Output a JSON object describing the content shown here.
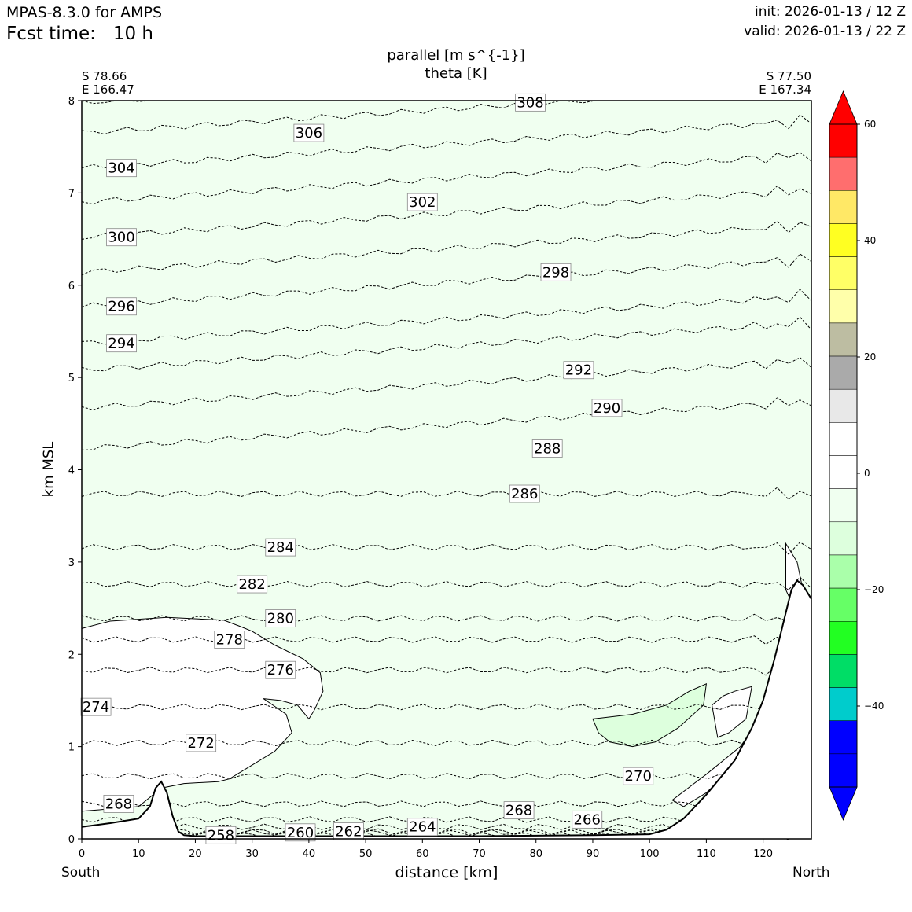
{
  "header": {
    "model": "MPAS-8.3.0 for AMPS",
    "fcst_label": "Fcst time:",
    "fcst_value": "10 h",
    "init": "init: 2026-01-13 / 12 Z",
    "valid": "valid: 2026-01-13 / 22 Z"
  },
  "corners": {
    "left_lat": "S 78.66",
    "left_lon": "E 166.47",
    "right_lat": "S 77.50",
    "right_lon": "E 167.34",
    "south": "South",
    "north": "North"
  },
  "chart_data": {
    "type": "cross-section contour",
    "title": "parallel [m s^{-1}]",
    "subtitle": "theta [K]",
    "xlabel": "distance [km]",
    "ylabel": "km MSL",
    "xlim": [
      0,
      128.5
    ],
    "ylim": [
      0,
      8
    ],
    "xticks": [
      0,
      10,
      20,
      30,
      40,
      50,
      60,
      70,
      80,
      90,
      100,
      110,
      120
    ],
    "yticks": [
      0,
      1,
      2,
      3,
      4,
      5,
      6,
      7,
      8
    ],
    "shading": "parallel wind mostly between -10 and 0 m/s (pale green); small -10 to -5 patch near 90-110 km at 1.3 km",
    "theta_contours": [
      {
        "value": "304",
        "x": 7,
        "y": 7.27
      },
      {
        "value": "306",
        "x": 40,
        "y": 7.65
      },
      {
        "value": "308",
        "x": 79,
        "y": 7.98
      },
      {
        "value": "302",
        "x": 60,
        "y": 6.9
      },
      {
        "value": "300",
        "x": 7,
        "y": 6.52
      },
      {
        "value": "298",
        "x": 83.5,
        "y": 6.14
      },
      {
        "value": "296",
        "x": 7,
        "y": 5.77
      },
      {
        "value": "294",
        "x": 7,
        "y": 5.37
      },
      {
        "value": "292",
        "x": 87.5,
        "y": 5.08
      },
      {
        "value": "290",
        "x": 92.5,
        "y": 4.67
      },
      {
        "value": "288",
        "x": 82,
        "y": 4.23
      },
      {
        "value": "286",
        "x": 78,
        "y": 3.74
      },
      {
        "value": "284",
        "x": 35,
        "y": 3.16
      },
      {
        "value": "282",
        "x": 30,
        "y": 2.76
      },
      {
        "value": "280",
        "x": 35,
        "y": 2.39
      },
      {
        "value": "278",
        "x": 26,
        "y": 2.16
      },
      {
        "value": "276",
        "x": 35,
        "y": 1.83
      },
      {
        "value": "274",
        "x": 2.5,
        "y": 1.43
      },
      {
        "value": "272",
        "x": 21,
        "y": 1.04
      },
      {
        "value": "270",
        "x": 98,
        "y": 0.68
      },
      {
        "value": "268",
        "x": 6.5,
        "y": 0.38
      },
      {
        "value": "268",
        "x": 77,
        "y": 0.31
      },
      {
        "value": "266",
        "x": 89,
        "y": 0.21
      },
      {
        "value": "264",
        "x": 60,
        "y": 0.13
      },
      {
        "value": "262",
        "x": 47,
        "y": 0.08
      },
      {
        "value": "260",
        "x": 38.5,
        "y": 0.07
      },
      {
        "value": "258",
        "x": 24.5,
        "y": 0.04
      }
    ],
    "terrain_profile": {
      "x": [
        0,
        5,
        10,
        12,
        13,
        14,
        15,
        16,
        17,
        18,
        20,
        25,
        30,
        40,
        50,
        60,
        70,
        80,
        90,
        100,
        103,
        106,
        110,
        115,
        118,
        120,
        122,
        124,
        125,
        126,
        127,
        128.5
      ],
      "y": [
        0.13,
        0.17,
        0.22,
        0.35,
        0.55,
        0.62,
        0.5,
        0.25,
        0.08,
        0.04,
        0.03,
        0.03,
        0.03,
        0.03,
        0.03,
        0.03,
        0.03,
        0.035,
        0.04,
        0.05,
        0.1,
        0.22,
        0.48,
        0.85,
        1.2,
        1.5,
        1.95,
        2.45,
        2.7,
        2.8,
        2.75,
        2.6
      ]
    },
    "colorbar": {
      "ticks": [
        "60",
        "40",
        "20",
        "0",
        "−20",
        "−40"
      ],
      "colors": [
        "#0000ff",
        "#0000ff",
        "#00cccc",
        "#00dd66",
        "#22ff22",
        "#66ff66",
        "#aaffaa",
        "#ddffdd",
        "#f0fff0",
        "#ffffff",
        "#ffffff",
        "#e8e8e8",
        "#aaaaaa",
        "#bdbda2",
        "#ffffaa",
        "#ffff66",
        "#ffff22",
        "#ffe866",
        "#ff6e6e",
        "#ff0000"
      ]
    }
  }
}
